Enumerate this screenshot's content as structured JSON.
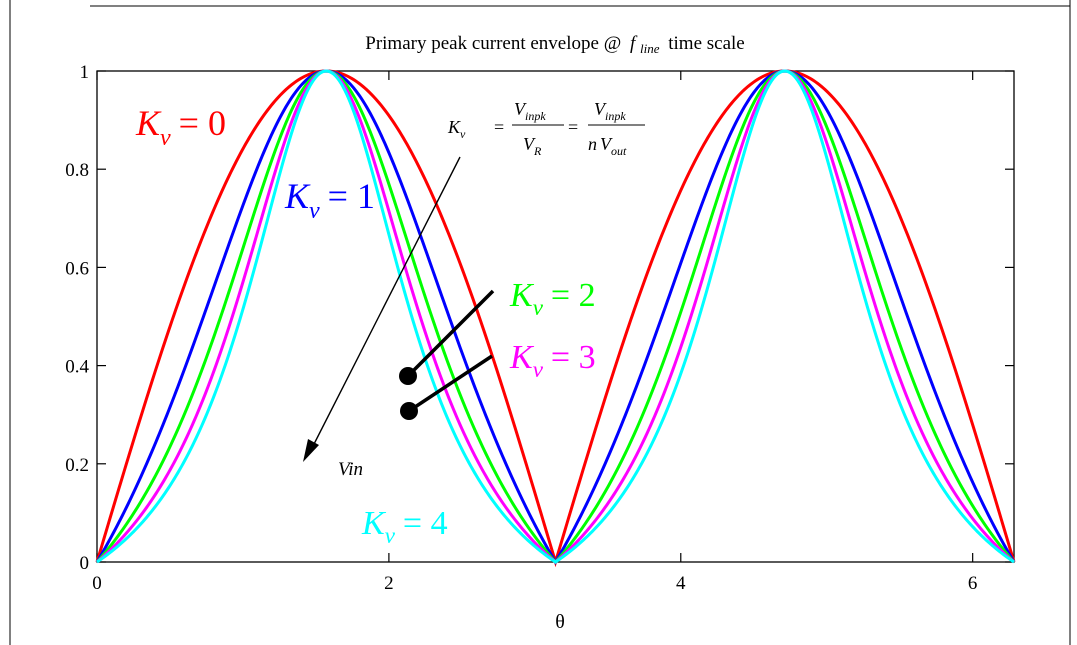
{
  "chart_data": {
    "type": "line",
    "title": {
      "main": "Primary peak current envelope @",
      "f_symbol": "f",
      "f_sub": "line",
      "tail": "time scale"
    },
    "xlabel": "θ",
    "ylabel": "",
    "xlim": [
      0,
      6.2832
    ],
    "ylim": [
      0,
      1
    ],
    "xticks": [
      0,
      2,
      4,
      6
    ],
    "yticks": [
      0,
      0.2,
      0.4,
      0.6,
      0.8,
      1
    ],
    "grid": false,
    "formula": "|sin θ| / (1 + Kv·(1 − |sin θ|))",
    "series": [
      {
        "kv": 0,
        "color": "#ff0000",
        "label": {
          "K": "K",
          "sub": "v",
          "eq": "= 0"
        }
      },
      {
        "kv": 1,
        "color": "#0000ff",
        "label": {
          "K": "K",
          "sub": "v",
          "eq": "= 1"
        }
      },
      {
        "kv": 2,
        "color": "#00ff00",
        "label": {
          "K": "K",
          "sub": "v",
          "eq": "= 2"
        }
      },
      {
        "kv": 3,
        "color": "#ff00ff",
        "label": {
          "K": "K",
          "sub": "v",
          "eq": "= 3"
        }
      },
      {
        "kv": 4,
        "color": "#00ffff",
        "label": {
          "K": "K",
          "sub": "v",
          "eq": "= 4"
        }
      }
    ],
    "annotations": {
      "equation": {
        "lhs_K": "K",
        "lhs_sub": "v",
        "num1": "V",
        "num1_sub": "inpk",
        "den1": "V",
        "den1_sub": "R",
        "num2": "V",
        "num2_sub": "inpk",
        "den2_n": "n",
        "den2": "V",
        "den2_sub": "out"
      },
      "arrow_label": "Vin"
    }
  }
}
